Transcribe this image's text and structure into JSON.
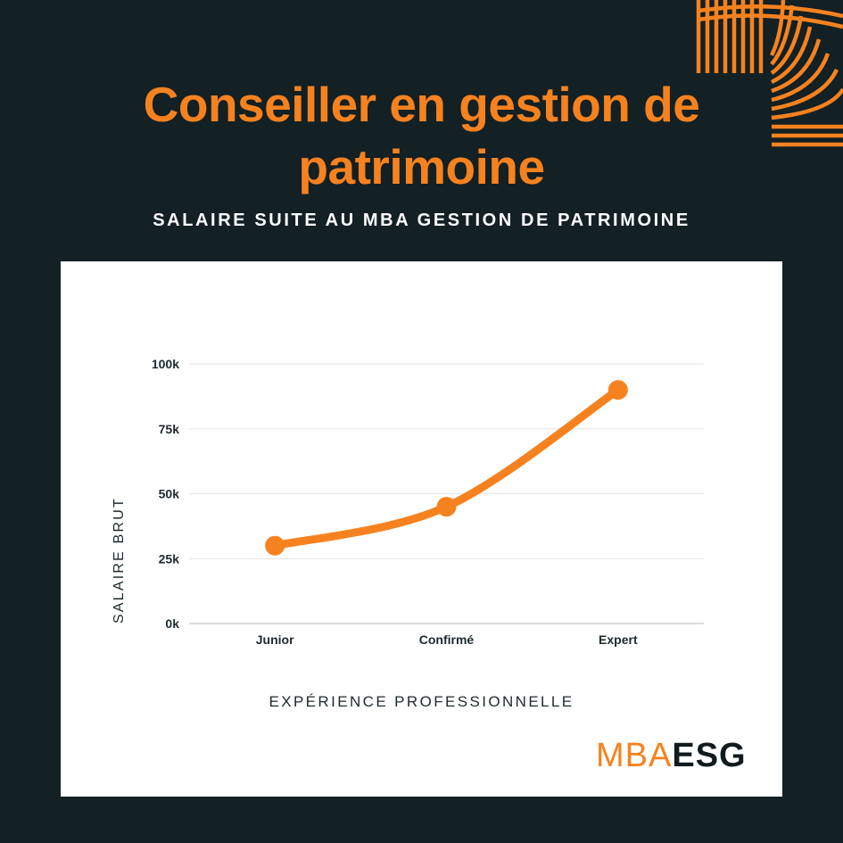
{
  "header": {
    "title_line1": "Conseiller en gestion de",
    "title_line2": "patrimoine",
    "subtitle": "SALAIRE SUITE AU MBA GESTION DE PATRIMOINE"
  },
  "logo": {
    "part1": "MBA",
    "part2": "ESG"
  },
  "colors": {
    "background": "#132024",
    "accent": "#f6821f",
    "card": "#ffffff",
    "grid": "#e3e3e3"
  },
  "chart_data": {
    "type": "line",
    "categories": [
      "Junior",
      "Confirmé",
      "Expert"
    ],
    "series": [
      {
        "values": [
          30000,
          45000,
          90000
        ]
      }
    ],
    "ylim": [
      0,
      100000
    ],
    "yticks": [
      0,
      25000,
      50000,
      75000,
      100000
    ],
    "ytick_labels": [
      "0k",
      "25k",
      "50k",
      "75k",
      "100k"
    ],
    "xlabel": "EXPÉRIENCE PROFESSIONNELLE",
    "ylabel": "SALAIRE BRUT",
    "grid": true,
    "smooth": true,
    "legend": "none"
  }
}
